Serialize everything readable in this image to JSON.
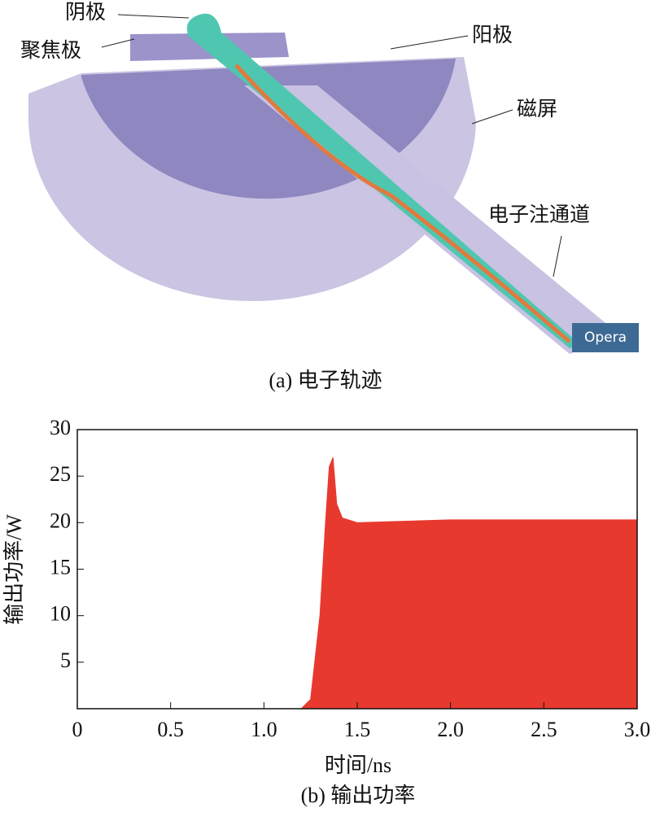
{
  "figure_a": {
    "labels": {
      "cathode": "阴极",
      "focus": "聚焦极",
      "anode": "阳极",
      "shield": "磁屏",
      "channel": "电子注通道"
    },
    "badge": "Opera",
    "caption": "(a) 电子轨迹"
  },
  "chart_data": {
    "type": "area",
    "caption": "(b) 输出功率",
    "xlabel": "时间/ns",
    "ylabel": "输出功率/W",
    "x": [
      0,
      1.2,
      1.25,
      1.3,
      1.33,
      1.35,
      1.37,
      1.39,
      1.42,
      1.5,
      2.0,
      2.5,
      3.0
    ],
    "values": [
      0,
      0,
      1,
      10,
      20,
      26,
      27,
      22,
      20.5,
      20,
      20.3,
      20.3,
      20.3
    ],
    "color": "#e8392f",
    "xlim": [
      0,
      3
    ],
    "xticks": [
      0,
      0.5,
      {
        "value": 1,
        "label": "1.0"
      },
      1.5,
      {
        "value": 2,
        "label": "2.0"
      },
      2.5,
      {
        "value": 3,
        "label": "3.0"
      }
    ],
    "ylim": [
      0,
      30
    ],
    "yticks": [
      5,
      10,
      15,
      20,
      25,
      30
    ]
  }
}
